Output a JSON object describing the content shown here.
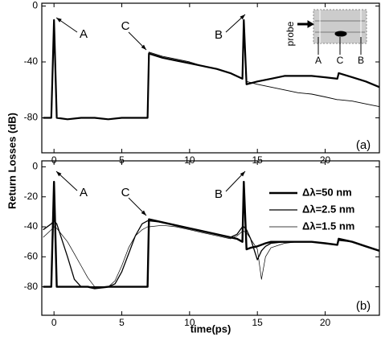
{
  "ylabel": "Return Losses (dB)",
  "xlabel": "time(ps)",
  "chart_data": [
    {
      "type": "line",
      "grid": false,
      "x": [
        -0.8,
        -0.2,
        0,
        0.2,
        1,
        2,
        3,
        4,
        5,
        6,
        6.9,
        7,
        8,
        9,
        10,
        11,
        12,
        13,
        13.9,
        14,
        14.2,
        15,
        16,
        17,
        18,
        19,
        20,
        20.9,
        21,
        22,
        23,
        24
      ],
      "series": [
        {
          "color": "#000000",
          "values": [
            -80,
            -80,
            -10,
            -80,
            -81,
            -80,
            -80,
            -81,
            -80,
            -80,
            -80,
            -34,
            -37,
            -39,
            -41,
            -43,
            -45,
            -48,
            -52,
            -10,
            -56,
            -54,
            -52,
            -50,
            -50,
            -50,
            -51,
            -52,
            -48,
            -51,
            -54,
            -58
          ]
        },
        {
          "color": "#000000",
          "values": [
            -80,
            -80,
            -10,
            -80,
            -81,
            -80,
            -80,
            -81,
            -80,
            -80,
            -80,
            -33,
            -36,
            -38,
            -40,
            -43,
            -45,
            -48,
            -52,
            -10,
            -54,
            -56,
            -58,
            -60,
            -62,
            -63,
            -65,
            -67,
            -67,
            -68,
            -70,
            -72
          ]
        }
      ],
      "xlim": [
        -0.9,
        24
      ],
      "ylim": [
        -105,
        2
      ],
      "xticks": [
        0,
        5,
        10,
        15,
        20
      ],
      "yticks": [
        0,
        -40,
        -80
      ],
      "annotations": [
        "A",
        "C",
        "B",
        "(a)"
      ],
      "inset_labels": [
        "probe",
        "A",
        "C",
        "B"
      ]
    },
    {
      "type": "line",
      "grid": false,
      "x": [
        -0.8,
        -0.2,
        0,
        0.2,
        1,
        1.5,
        2,
        2.5,
        3,
        4,
        4.5,
        5,
        5.5,
        6,
        6.5,
        6.9,
        7,
        8,
        9,
        10,
        11,
        12,
        13,
        13.5,
        13.9,
        14,
        14.2,
        14.5,
        15,
        15.3,
        15.6,
        16,
        17,
        18,
        19,
        20,
        20.9,
        21,
        22,
        23,
        24
      ],
      "series": [
        {
          "name": "Δλ=50 nm",
          "color": "#000000",
          "values": [
            -80,
            -80,
            -10,
            -80,
            -80,
            -80,
            -80,
            -80,
            -81,
            -80,
            -80,
            -80,
            -80,
            -80,
            -80,
            -80,
            -35,
            -37,
            -39,
            -41,
            -43,
            -45,
            -47,
            -48,
            -50,
            -10,
            -55,
            -54,
            -53,
            -52,
            -51,
            -50,
            -50,
            -50,
            -50,
            -51,
            -52,
            -48,
            -50,
            -53,
            -56
          ]
        },
        {
          "name": "Δλ=2.5 nm",
          "color": "#000000",
          "values": [
            -42,
            -38,
            -36,
            -38,
            -60,
            -75,
            -80,
            -80,
            -80,
            -80,
            -78,
            -70,
            -58,
            -46,
            -38,
            -36,
            -36,
            -37,
            -39,
            -41,
            -43,
            -45,
            -47,
            -45,
            -40,
            -40,
            -42,
            -48,
            -62,
            -56,
            -53,
            -51,
            -50,
            -50,
            -50,
            -51,
            -52,
            -49,
            -50,
            -53,
            -56
          ]
        },
        {
          "name": "Δλ=1.5 nm",
          "color": "#000000",
          "values": [
            -47,
            -42,
            -40,
            -41,
            -50,
            -58,
            -66,
            -74,
            -80,
            -80,
            -76,
            -66,
            -54,
            -46,
            -42,
            -40,
            -40,
            -39,
            -40,
            -42,
            -44,
            -46,
            -48,
            -46,
            -43,
            -43,
            -44,
            -48,
            -55,
            -75,
            -60,
            -54,
            -51,
            -50,
            -50,
            -51,
            -52,
            -49,
            -50,
            -53,
            -56
          ]
        }
      ],
      "xlim": [
        -0.9,
        24
      ],
      "ylim": [
        -99,
        4
      ],
      "xticks": [
        0,
        5,
        10,
        15,
        20
      ],
      "yticks": [
        0,
        -20,
        -40,
        -60,
        -80
      ],
      "annotations": [
        "A",
        "C",
        "B",
        "(b)"
      ]
    }
  ]
}
